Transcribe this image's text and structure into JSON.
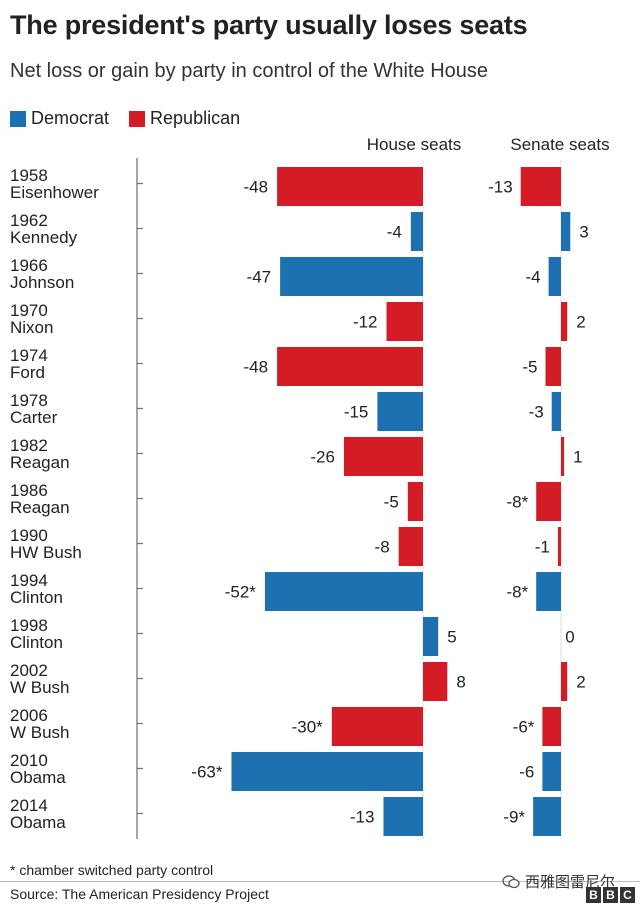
{
  "header": {
    "title": "The president's party usually loses seats",
    "subtitle": "Net loss or gain by party in control of the White House"
  },
  "legend": {
    "democrat_label": "Democrat",
    "republican_label": "Republican"
  },
  "footer": {
    "footnote": "* chamber switched party control",
    "source": "Source: The American Presidency Project",
    "watermark": "西雅图雷尼尔",
    "bbc_letters": [
      "B",
      "B",
      "C"
    ]
  },
  "colors": {
    "democrat": "#1d71b1",
    "republican": "#d31c26",
    "text": "#222222",
    "axis": "#777777"
  },
  "chart_data": {
    "type": "bar",
    "orientation": "horizontal",
    "title": "The president's party usually loses seats",
    "subtitle": "Net loss or gain by party in control of the White House",
    "panels": [
      {
        "key": "house",
        "label": "House seats"
      },
      {
        "key": "senate",
        "label": "Senate seats"
      }
    ],
    "rows": [
      {
        "year": "1958",
        "president": "Eisenhower",
        "party": "Republican",
        "house": -48,
        "house_label": "-48",
        "senate": -13,
        "senate_label": "-13"
      },
      {
        "year": "1962",
        "president": "Kennedy",
        "party": "Democrat",
        "house": -4,
        "house_label": "-4",
        "senate": 3,
        "senate_label": "3"
      },
      {
        "year": "1966",
        "president": "Johnson",
        "party": "Democrat",
        "house": -47,
        "house_label": "-47",
        "senate": -4,
        "senate_label": "-4"
      },
      {
        "year": "1970",
        "president": "Nixon",
        "party": "Republican",
        "house": -12,
        "house_label": "-12",
        "senate": 2,
        "senate_label": "2"
      },
      {
        "year": "1974",
        "president": "Ford",
        "party": "Republican",
        "house": -48,
        "house_label": "-48",
        "senate": -5,
        "senate_label": "-5"
      },
      {
        "year": "1978",
        "president": "Carter",
        "party": "Democrat",
        "house": -15,
        "house_label": "-15",
        "senate": -3,
        "senate_label": "-3"
      },
      {
        "year": "1982",
        "president": "Reagan",
        "party": "Republican",
        "house": -26,
        "house_label": "-26",
        "senate": 1,
        "senate_label": "1"
      },
      {
        "year": "1986",
        "president": "Reagan",
        "party": "Republican",
        "house": -5,
        "house_label": "-5",
        "senate": -8,
        "senate_label": "-8*"
      },
      {
        "year": "1990",
        "president": "HW Bush",
        "party": "Republican",
        "house": -8,
        "house_label": "-8",
        "senate": -1,
        "senate_label": "-1"
      },
      {
        "year": "1994",
        "president": "Clinton",
        "party": "Democrat",
        "house": -52,
        "house_label": "-52*",
        "senate": -8,
        "senate_label": "-8*"
      },
      {
        "year": "1998",
        "president": "Clinton",
        "party": "Democrat",
        "house": 5,
        "house_label": "5",
        "senate": 0,
        "senate_label": "0"
      },
      {
        "year": "2002",
        "president": "W Bush",
        "party": "Republican",
        "house": 8,
        "house_label": "8",
        "senate": 2,
        "senate_label": "2"
      },
      {
        "year": "2006",
        "president": "W Bush",
        "party": "Republican",
        "house": -30,
        "house_label": "-30*",
        "senate": -6,
        "senate_label": "-6*"
      },
      {
        "year": "2010",
        "president": "Obama",
        "party": "Democrat",
        "house": -63,
        "house_label": "-63*",
        "senate": -6,
        "senate_label": "-6"
      },
      {
        "year": "2014",
        "president": "Obama",
        "party": "Democrat",
        "house": -13,
        "house_label": "-13",
        "senate": -9,
        "senate_label": "-9*"
      }
    ],
    "legend": [
      "Democrat",
      "Republican"
    ],
    "annotation": "* chamber switched party control"
  }
}
